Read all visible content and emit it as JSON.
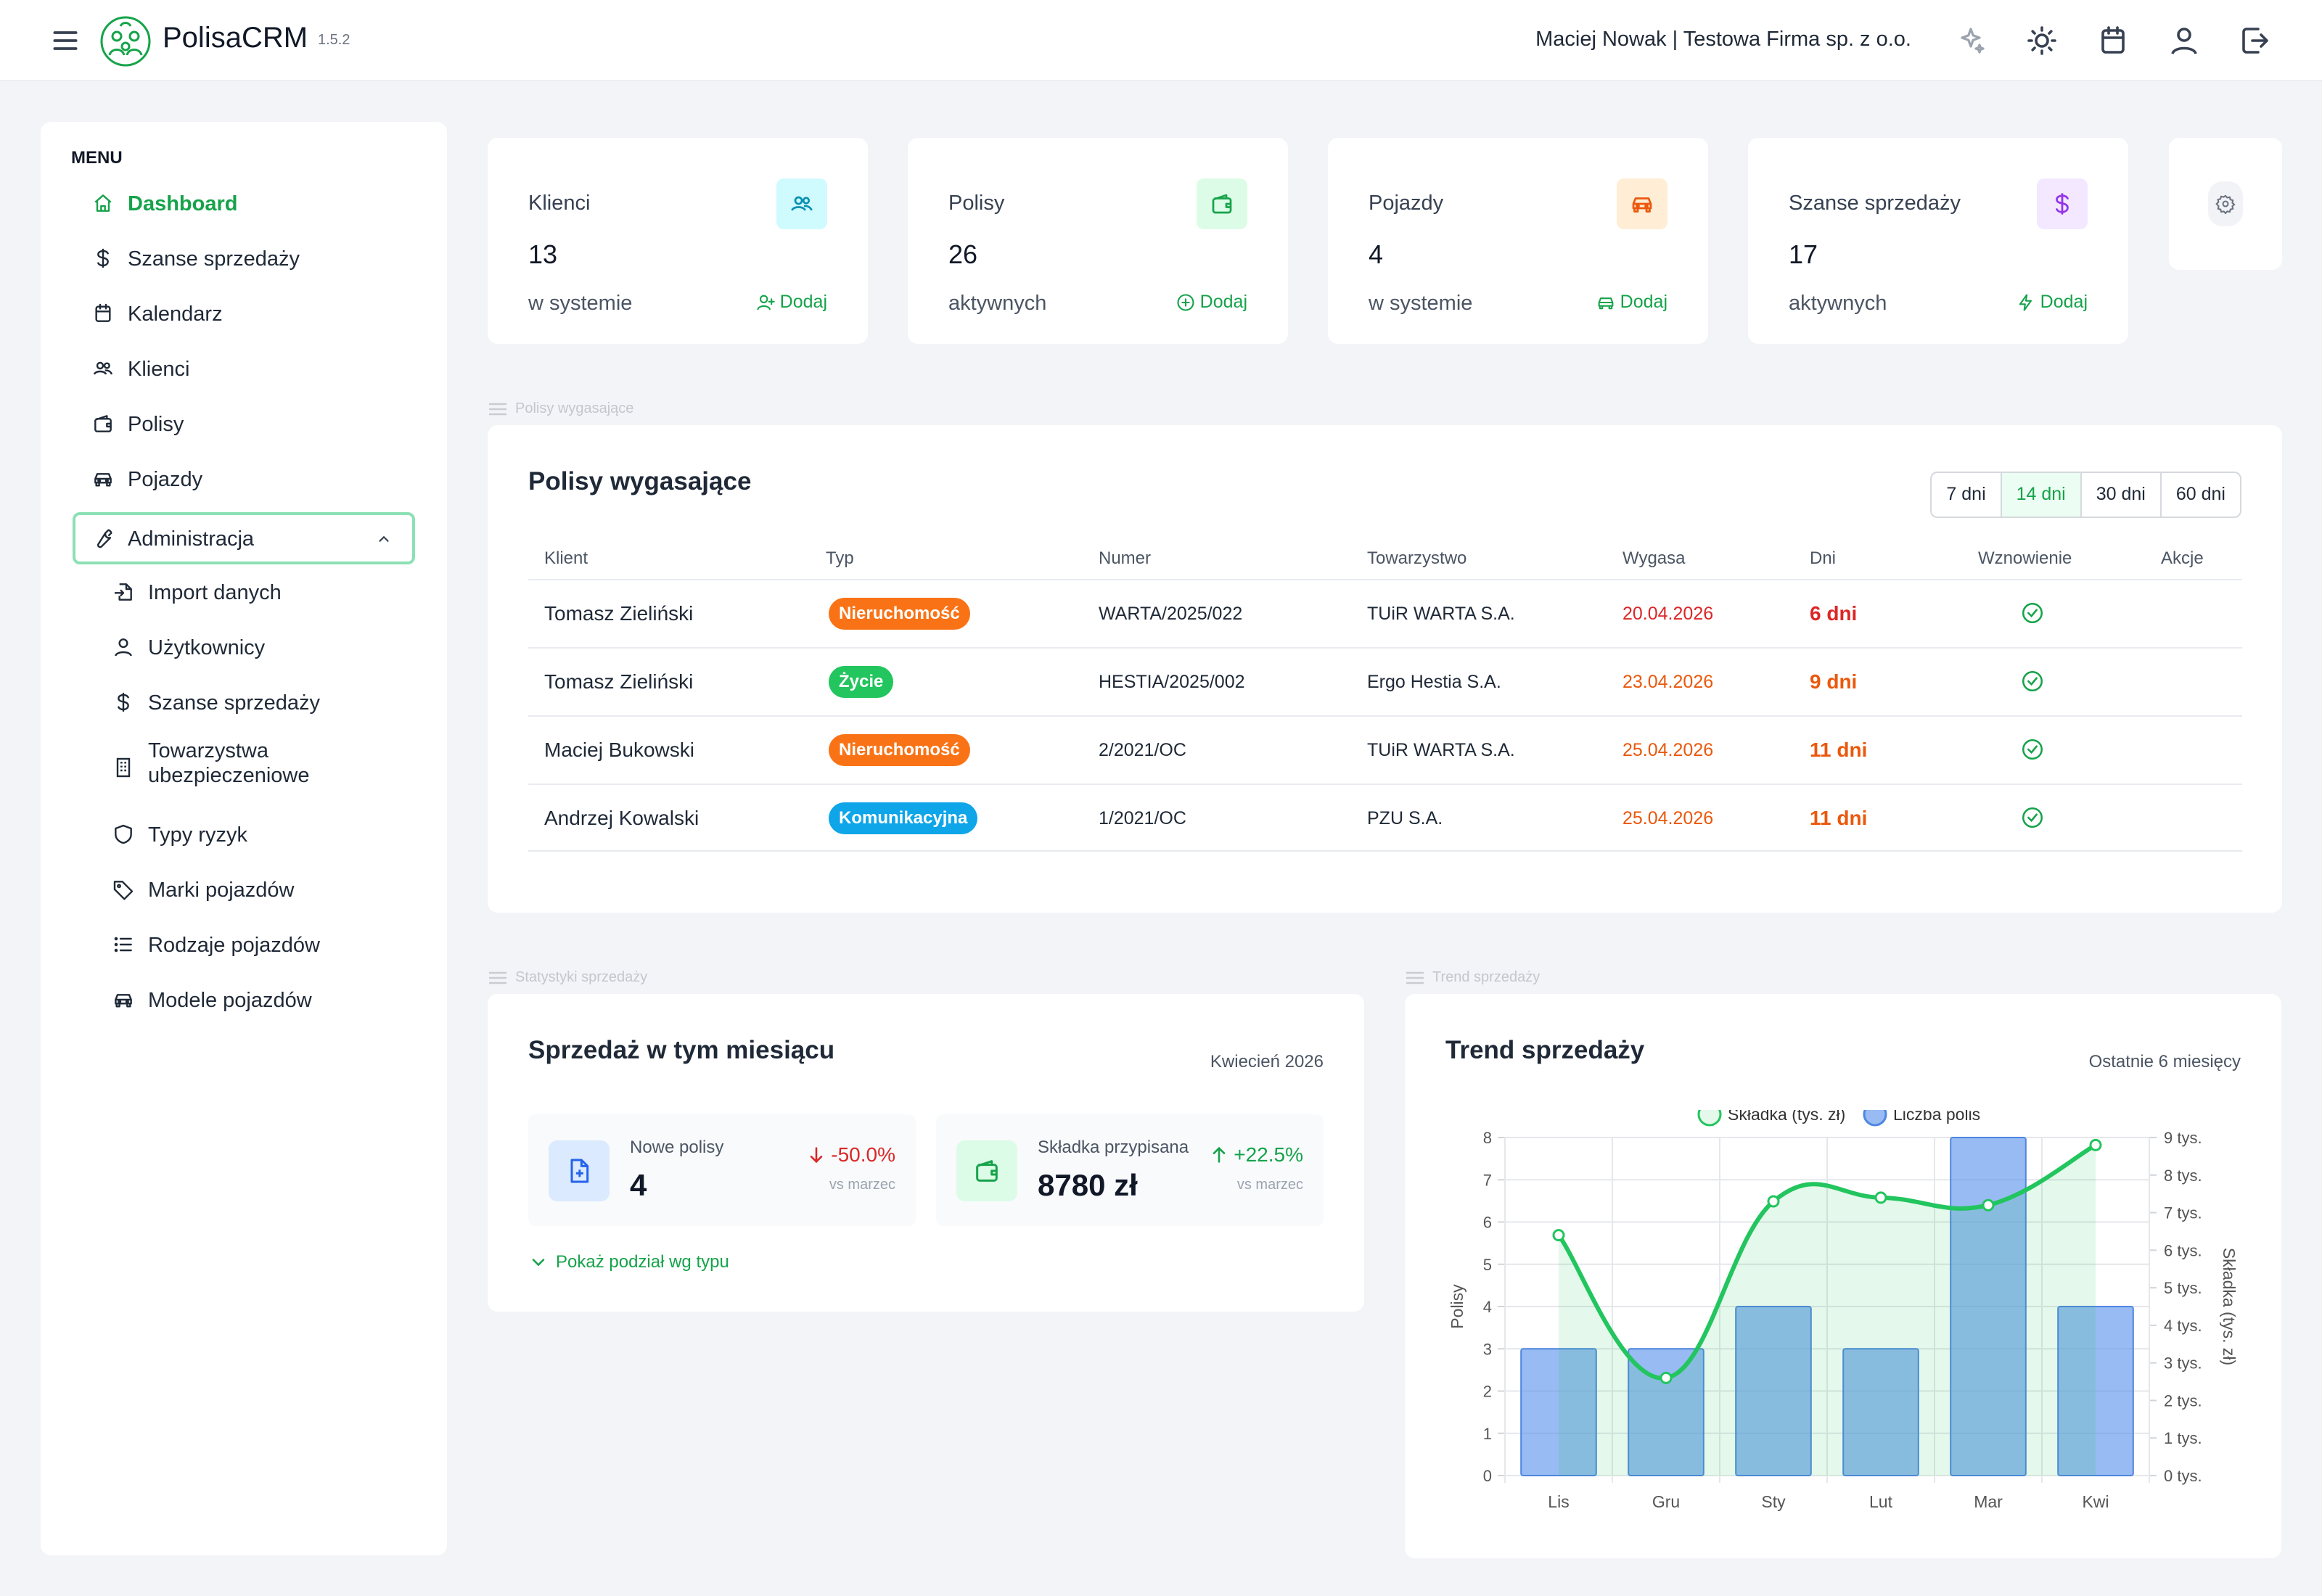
{
  "app": {
    "name": "PolisaCRM",
    "version": "1.5.2",
    "user": "Maciej Nowak | Testowa Firma sp. z o.o."
  },
  "sidebar": {
    "heading": "MENU",
    "items": [
      {
        "label": "Dashboard",
        "icon": "home-icon"
      },
      {
        "label": "Szanse sprzedaży",
        "icon": "dollar-icon"
      },
      {
        "label": "Kalendarz",
        "icon": "calendar-icon"
      },
      {
        "label": "Klienci",
        "icon": "users-icon"
      },
      {
        "label": "Polisy",
        "icon": "wallet-icon"
      },
      {
        "label": "Pojazdy",
        "icon": "car-icon"
      },
      {
        "label": "Administracja",
        "icon": "wrench-icon"
      }
    ],
    "admin_items": [
      {
        "label": "Import danych",
        "icon": "file-import-icon"
      },
      {
        "label": "Użytkownicy",
        "icon": "user-icon"
      },
      {
        "label": "Szanse sprzedaży",
        "icon": "dollar-icon"
      },
      {
        "label": "Towarzystwa ubezpieczeniowe",
        "label1": "Towarzystwa",
        "label2": "ubezpieczeniowe",
        "icon": "building-icon"
      },
      {
        "label": "Typy ryzyk",
        "icon": "shield-icon"
      },
      {
        "label": "Marki pojazdów",
        "icon": "tag-icon"
      },
      {
        "label": "Rodzaje pojazdów",
        "icon": "list-icon"
      },
      {
        "label": "Modele pojazdów",
        "icon": "car-icon"
      }
    ]
  },
  "stats": [
    {
      "title": "Klienci",
      "value": "13",
      "sub": "w systemie",
      "action": "Dodaj",
      "color": "#06b6d4"
    },
    {
      "title": "Polisy",
      "value": "26",
      "sub": "aktywnych",
      "action": "Dodaj",
      "color": "#16a34a"
    },
    {
      "title": "Pojazdy",
      "value": "4",
      "sub": "w systemie",
      "action": "Dodaj",
      "color": "#ea580c"
    },
    {
      "title": "Szanse sprzedaży",
      "value": "17",
      "sub": "aktywnych",
      "action": "Dodaj",
      "color": "#9333ea"
    }
  ],
  "expiring": {
    "section_label": "Polisy wygasające",
    "title": "Polisy wygasające",
    "ranges": [
      "7 dni",
      "14 dni",
      "30 dni",
      "60 dni"
    ],
    "selected_range": "14 dni",
    "columns": [
      "Klient",
      "Typ",
      "Numer",
      "Towarzystwo",
      "Wygasa",
      "Dni",
      "Wznowienie",
      "Akcje"
    ],
    "rows": [
      {
        "client": "Tomasz Zieliński",
        "type": "Nieruchomość",
        "type_color": "#f97316",
        "number": "WARTA/2025/022",
        "company": "TUiR WARTA S.A.",
        "expires": "20.04.2026",
        "days": "6 dni",
        "date_color": "#dc2626"
      },
      {
        "client": "Tomasz Zieliński",
        "type": "Życie",
        "type_color": "#22c55e",
        "number": "HESTIA/2025/002",
        "company": "Ergo Hestia S.A.",
        "expires": "23.04.2026",
        "days": "9 dni",
        "date_color": "#ea580c"
      },
      {
        "client": "Maciej Bukowski",
        "type": "Nieruchomość",
        "type_color": "#f97316",
        "number": "2/2021/OC",
        "company": "TUiR WARTA S.A.",
        "expires": "25.04.2026",
        "days": "11 dni",
        "date_color": "#ea580c"
      },
      {
        "client": "Andrzej Kowalski",
        "type": "Komunikacyjna",
        "type_color": "#0ea5e9",
        "number": "1/2021/OC",
        "company": "PZU S.A.",
        "expires": "25.04.2026",
        "days": "11 dni",
        "date_color": "#ea580c"
      }
    ]
  },
  "sales": {
    "section_label": "Statystyki sprzedaży",
    "title": "Sprzedaż w tym miesiącu",
    "period": "Kwiecień 2026",
    "new_policies": {
      "label": "Nowe polisy",
      "value": "4",
      "change": "-50.0%",
      "vs": "vs marzec"
    },
    "premium": {
      "label": "Składka przypisana",
      "value": "8780 zł",
      "change": "+22.5%",
      "vs": "vs marzec"
    },
    "toggle": "Pokaż podział wg typu"
  },
  "trend": {
    "section_label": "Trend sprzedaży",
    "title": "Trend sprzedaży",
    "range": "Ostatnie 6 miesięcy"
  },
  "chart_data": {
    "type": "bar",
    "categories": [
      "Lis",
      "Gru",
      "Sty",
      "Lut",
      "Mar",
      "Kwi"
    ],
    "series": [
      {
        "name": "Liczba polis",
        "type": "bar",
        "axis": "left",
        "values": [
          3,
          3,
          4,
          3,
          8,
          4
        ]
      },
      {
        "name": "Składka (tys. zł)",
        "type": "area",
        "axis": "right",
        "values": [
          6.4,
          2.6,
          7.3,
          7.4,
          7.2,
          8.8
        ]
      }
    ],
    "ylabel": "Polisy",
    "y2label": "Składka (tys. zł)",
    "ylim": [
      0,
      8
    ],
    "y2lim": [
      0,
      9
    ],
    "yticks": [
      "0",
      "1",
      "2",
      "3",
      "4",
      "5",
      "6",
      "7",
      "8"
    ],
    "y2ticks": [
      "0 tys.",
      "1 tys.",
      "2 tys.",
      "3 tys.",
      "4 tys.",
      "5 tys.",
      "6 tys.",
      "7 tys.",
      "8 tys.",
      "9 tys."
    ],
    "legend": "top-center"
  }
}
